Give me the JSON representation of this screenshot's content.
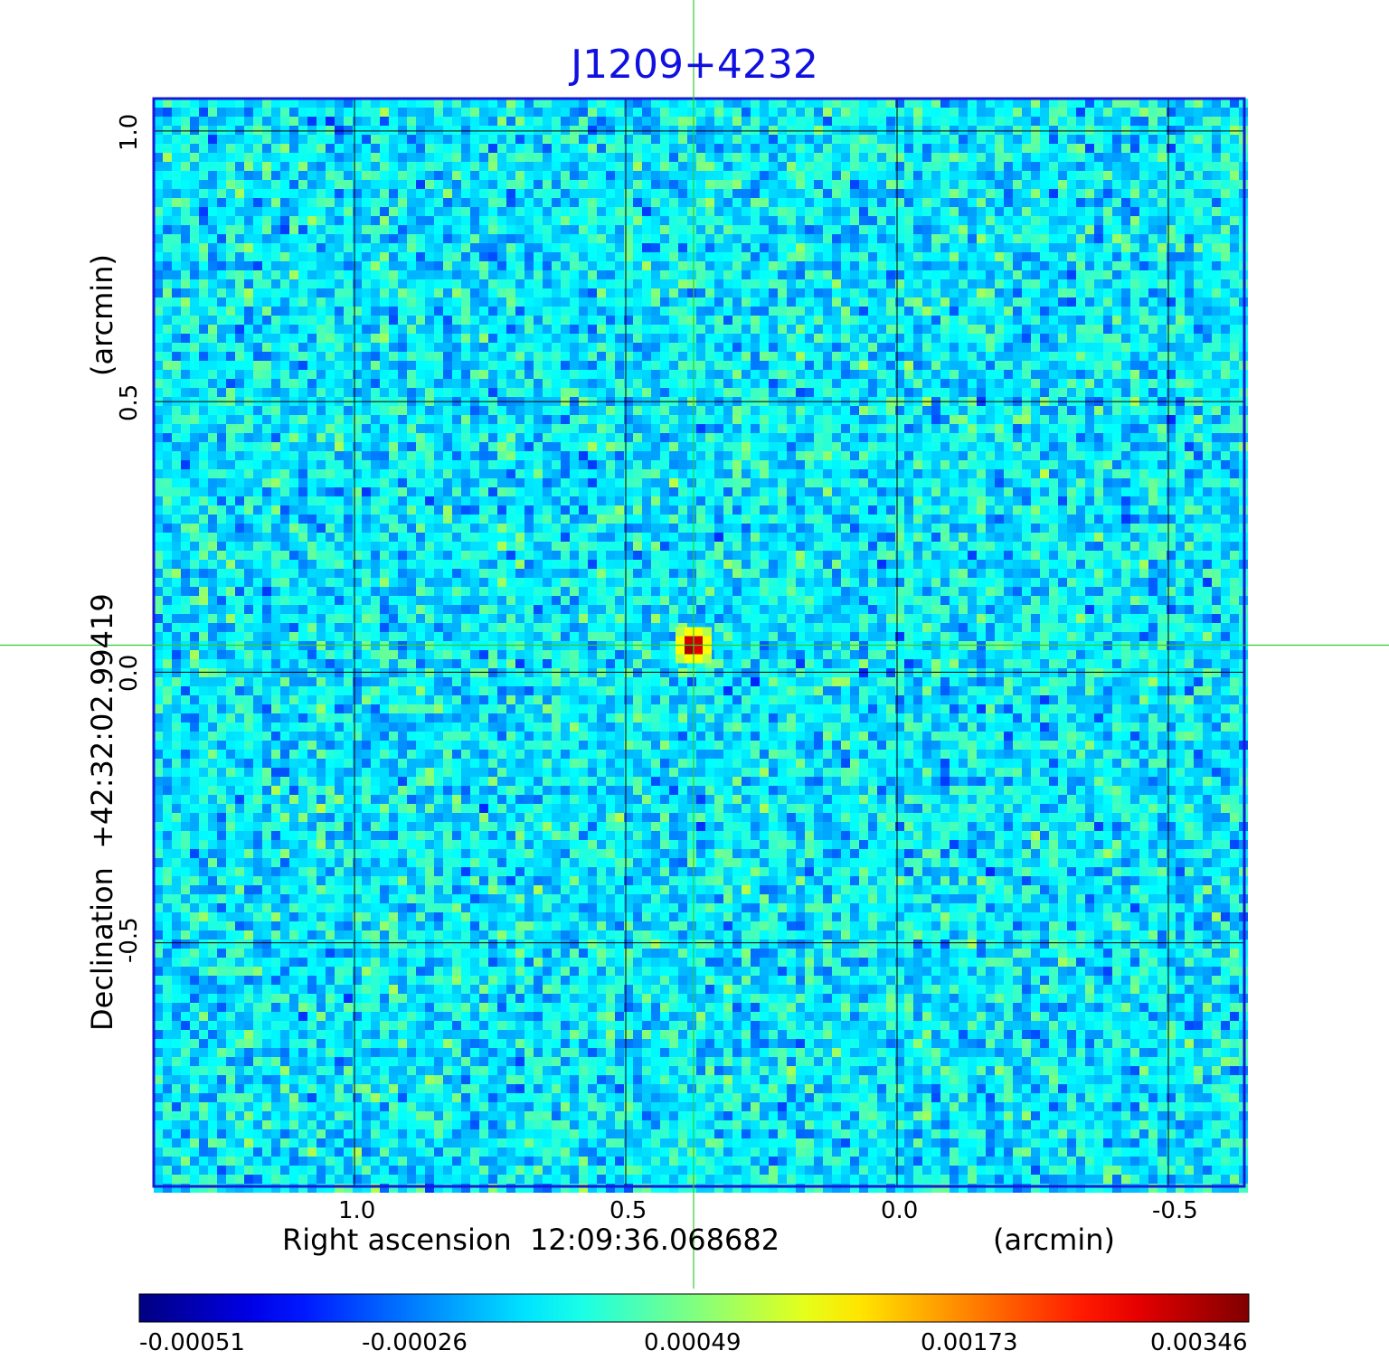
{
  "chart_data": {
    "type": "heatmap",
    "title": "J1209+4232",
    "xlabel": "Right ascension  12:09:36.068682",
    "xlabel_unit": "(arcmin)",
    "ylabel": "Declination  +42:32:02.99419",
    "ylabel_unit": "(arcmin)",
    "xlim": [
      1.37,
      -0.64
    ],
    "ylim": [
      -0.95,
      1.06
    ],
    "x_ticks": [
      1.0,
      0.5,
      0.0,
      -0.5
    ],
    "x_tick_labels": [
      "1.0",
      "0.5",
      "0.0",
      "-0.5"
    ],
    "y_ticks": [
      -0.5,
      0.0,
      0.5,
      1.0
    ],
    "y_tick_labels": [
      "-0.5",
      "0.0",
      "0.5",
      "1.0"
    ],
    "grid": true,
    "crosshair": {
      "x": 0.375,
      "y": 0.05,
      "color": "#33cc33"
    },
    "peak": {
      "x": 0.375,
      "y": 0.05,
      "value": 0.00346
    },
    "colormap": "jet",
    "colorbar_ticks": [
      "-0.00051",
      "-0.00026",
      "0.00049",
      "0.00173",
      "0.00346"
    ],
    "colorbar_range": [
      -0.00051,
      0.00346
    ]
  }
}
